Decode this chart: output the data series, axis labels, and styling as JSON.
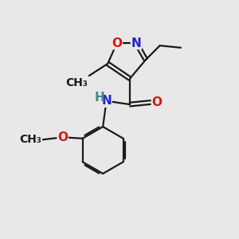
{
  "bg_color": "#e8e8e8",
  "bond_color": "#1a1a1a",
  "N_color": "#2222cc",
  "O_color": "#dd1111",
  "NH_color": "#2222cc",
  "H_color": "#448888",
  "font_size": 11,
  "small_font_size": 10,
  "lw": 1.6,
  "xlim": [
    0,
    10
  ],
  "ylim": [
    0,
    10
  ]
}
